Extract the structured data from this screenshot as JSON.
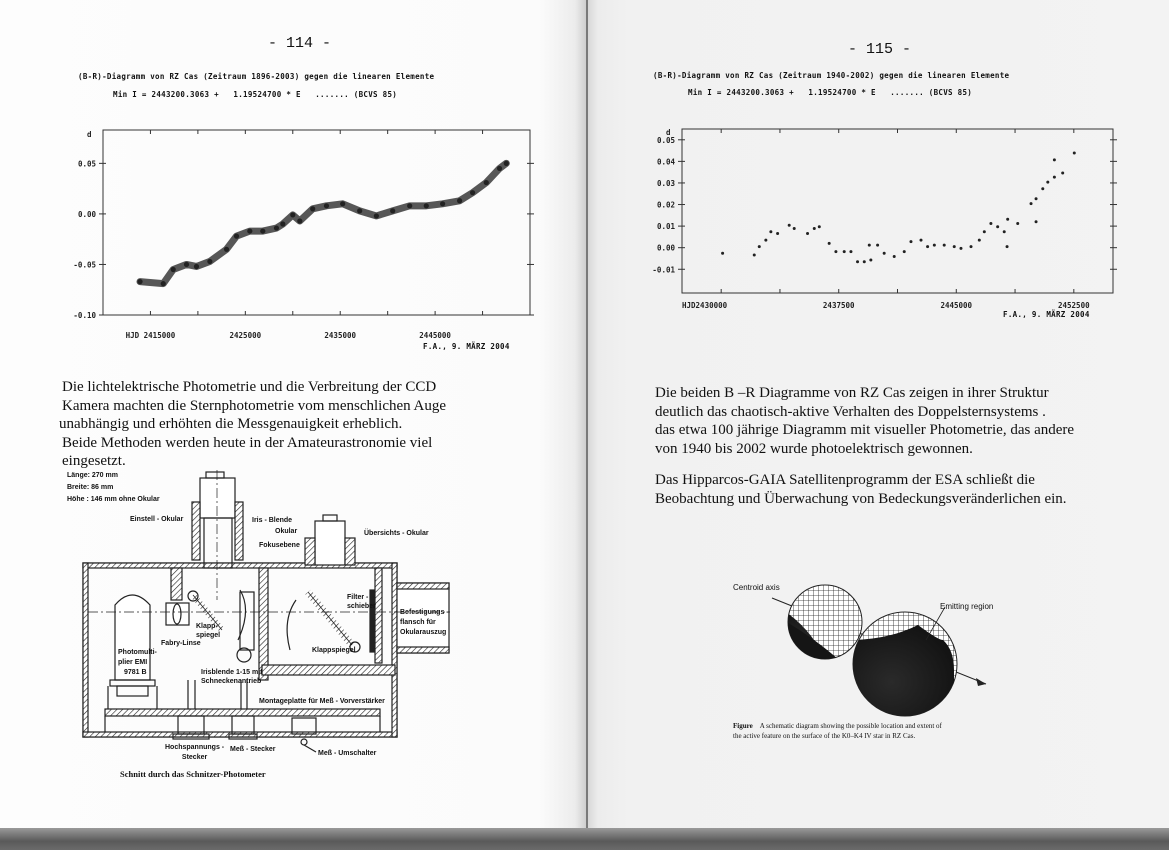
{
  "left_page": {
    "page_number": "- 114 -",
    "chart_header": {
      "line1": "(B-R)-Diagramm von RZ Cas (Zeitraum 1896-2003) gegen die linearen Elemente",
      "line2": "Min I = 2443200.3063 +   1.19524700 * E   ....... (BCVS 85)"
    },
    "chart_credit": "F.A., 9. MÄRZ 2004",
    "body_lines": [
      "Die  lichtelektrische Photometrie und die Verbreitung der CCD",
      "Kamera machten die Sternphotometrie vom menschlichen Auge",
      "unabhängig und erhöhten die Messgenauigkeit erheblich.",
      "Beide Methoden werden heute in der Amateurastronomie viel",
      "eingesetzt."
    ],
    "diagram": {
      "dimensions": [
        "Länge: 270 mm",
        "Breite:  86 mm",
        "Höhe : 146 mm ohne Okular"
      ],
      "labels": {
        "einstell_okular": "Einstell - Okular",
        "iris_blende": "Iris - Blende",
        "okular": "Okular",
        "fokusebene": "Fokusebene",
        "uebersichts_okular": "Übersichts - Okular",
        "filter_1": "Filter -",
        "filter_2": "schieber",
        "befestigung_1": "Befestigungs -",
        "befestigung_2": "flansch für",
        "befestigung_3": "Okularauszug",
        "klappspiegel_1": "Klapp-",
        "klappspiegel_2": "spiegel",
        "fabry_linse": "Fabry-Linse",
        "pm_1": "Photomulti-",
        "pm_2": "plier EMI",
        "pm_3": "9781 B",
        "irisblende_1": "Irisblende 1-15 mit",
        "irisblende_2": "Schneckenantrieb",
        "klappspiegel_right": "Klappspiegel",
        "montageplatte": "Montageplatte für Meß - Vorverstärker",
        "hochspannung_1": "Hochspannungs -",
        "hochspannung_2": "Stecker",
        "mess_stecker": "Meß - Stecker",
        "mess_umschalter": "Meß - Umschalter"
      },
      "caption": "Schnitt durch das Schnitzer-Photometer"
    }
  },
  "right_page": {
    "page_number": "- 115 -",
    "chart_header": {
      "line1": "(B-R)-Diagramm von RZ Cas (Zeitraum 1940-2002) gegen die linearen Elemente",
      "line2": "Min I = 2443200.3063 +   1.19524700 * E   ....... (BCVS 85)"
    },
    "chart_credit": "F.A., 9. MÄRZ 2004",
    "paragraph1_lines": [
      "Die beiden B –R  Diagramme von RZ Cas   zeigen in ihrer Struktur",
      "deutlich  das  chaotisch-aktive Verhalten des Doppelsternsystems .",
      "das  etwa 100 jährige Diagramm mit visueller Photometrie, das andere",
      "von 1940 bis 2002 wurde photoelektrisch gewonnen."
    ],
    "paragraph2_lines": [
      "Das Hipparcos-GAIA  Satellitenprogramm der ESA schließt die",
      "Beobachtung und Überwachung  von Bedeckungsveränderlichen ein."
    ],
    "figure": {
      "label_centroid": "Centroid axis",
      "label_emitting": "Emitting region",
      "caption_label": "Figure",
      "caption_line1": "A schematic diagram showing the possible location and extent of",
      "caption_line2": "the active feature on the surface of the K0–K4 IV star in RZ Cas."
    }
  },
  "chart_data": [
    {
      "type": "scatter",
      "title": "(B-R)-Diagramm von RZ Cas (Zeitraum 1896-2003) gegen die linearen Elemente",
      "xlabel": "HJD",
      "ylabel": "d",
      "xlim": [
        2410000,
        2455000
      ],
      "ylim": [
        -0.1,
        0.083
      ],
      "x_ticks": [
        2415000,
        2425000,
        2435000,
        2445000
      ],
      "x_tick_labels": [
        "HJD  2415000",
        "2425000",
        "2435000",
        "2445000"
      ],
      "y_ticks": [
        0.05,
        0.0,
        -0.05,
        -0.1
      ],
      "y_tick_labels": [
        "0.05",
        "0.00",
        "-0.05",
        "-0.10"
      ],
      "grid": false,
      "points": [
        [
          2413900,
          -0.067
        ],
        [
          2416350,
          -0.069
        ],
        [
          2417400,
          -0.055
        ],
        [
          2418800,
          -0.05
        ],
        [
          2419850,
          -0.052
        ],
        [
          2421260,
          -0.047
        ],
        [
          2423020,
          -0.035
        ],
        [
          2424070,
          -0.022
        ],
        [
          2425470,
          -0.017
        ],
        [
          2426840,
          -0.017
        ],
        [
          2428280,
          -0.014
        ],
        [
          2428950,
          -0.01
        ],
        [
          2430000,
          -0.001
        ],
        [
          2430740,
          -0.007
        ],
        [
          2432100,
          0.005
        ],
        [
          2433550,
          0.008
        ],
        [
          2435260,
          0.01
        ],
        [
          2437050,
          0.003
        ],
        [
          2438810,
          -0.002
        ],
        [
          2440530,
          0.003
        ],
        [
          2442320,
          0.008
        ],
        [
          2444070,
          0.008
        ],
        [
          2445790,
          0.01
        ],
        [
          2447580,
          0.013
        ],
        [
          2448950,
          0.021
        ],
        [
          2450390,
          0.031
        ],
        [
          2451790,
          0.045
        ],
        [
          2452500,
          0.05
        ]
      ]
    },
    {
      "type": "scatter",
      "title": "(B-R)-Diagramm von RZ Cas (Zeitraum 1940-2002) gegen die linearen Elemente",
      "xlabel": "HJD",
      "ylabel": "d",
      "xlim": [
        2427500,
        2455000
      ],
      "ylim": [
        -0.021,
        0.055
      ],
      "x_ticks": [
        2430000,
        2437500,
        2445000,
        2452500
      ],
      "x_tick_labels": [
        "HJD2430000",
        "2437500",
        "2445000",
        "2452500"
      ],
      "y_ticks": [
        0.05,
        0.04,
        0.03,
        0.02,
        0.01,
        0.0,
        -0.01
      ],
      "y_tick_labels": [
        "0.05",
        "0.04",
        "0.03",
        "0.02",
        "0.01",
        "0.00",
        "-0.01"
      ],
      "grid": false,
      "points": [
        [
          2430090,
          -0.0026
        ],
        [
          2432110,
          -0.0034
        ],
        [
          2432430,
          0.0005
        ],
        [
          2432850,
          0.0035
        ],
        [
          2433170,
          0.0074
        ],
        [
          2433600,
          0.0066
        ],
        [
          2434340,
          0.0104
        ],
        [
          2434660,
          0.0089
        ],
        [
          2435510,
          0.0066
        ],
        [
          2435940,
          0.0089
        ],
        [
          2436260,
          0.0097
        ],
        [
          2436890,
          0.002
        ],
        [
          2437320,
          -0.0018
        ],
        [
          2437850,
          -0.0018
        ],
        [
          2438280,
          -0.0018
        ],
        [
          2438700,
          -0.0065
        ],
        [
          2439130,
          -0.0065
        ],
        [
          2439550,
          -0.0057
        ],
        [
          2439450,
          0.0012
        ],
        [
          2439980,
          0.0012
        ],
        [
          2440400,
          -0.0026
        ],
        [
          2441040,
          -0.0041
        ],
        [
          2441680,
          -0.0018
        ],
        [
          2442110,
          0.0028
        ],
        [
          2442750,
          0.0035
        ],
        [
          2443170,
          0.0005
        ],
        [
          2443600,
          0.0012
        ],
        [
          2444230,
          0.0012
        ],
        [
          2444870,
          0.0005
        ],
        [
          2445300,
          -0.0003
        ],
        [
          2445940,
          0.0005
        ],
        [
          2446470,
          0.0035
        ],
        [
          2446790,
          0.0074
        ],
        [
          2447210,
          0.0112
        ],
        [
          2447640,
          0.0097
        ],
        [
          2448060,
          0.0074
        ],
        [
          2448240,
          0.0005
        ],
        [
          2448280,
          0.0132
        ],
        [
          2448920,
          0.0112
        ],
        [
          2449770,
          0.0204
        ],
        [
          2450090,
          0.0227
        ],
        [
          2450090,
          0.012
        ],
        [
          2450520,
          0.0273
        ],
        [
          2450840,
          0.0304
        ],
        [
          2451260,
          0.0327
        ],
        [
          2451260,
          0.0407
        ],
        [
          2451790,
          0.0346
        ],
        [
          2452530,
          0.0439
        ]
      ]
    }
  ]
}
